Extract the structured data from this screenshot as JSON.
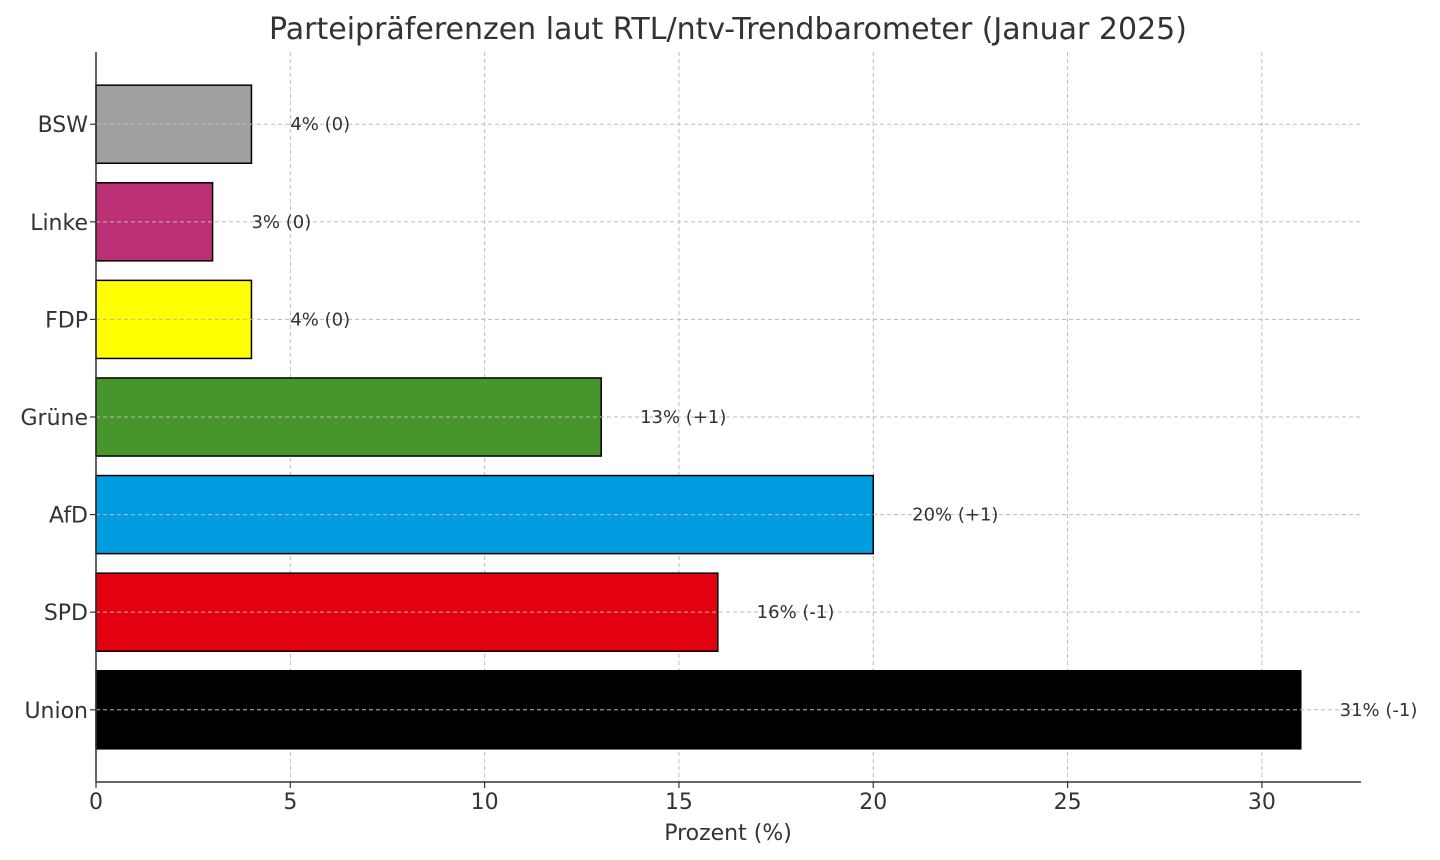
{
  "chart_data": {
    "type": "bar",
    "orientation": "horizontal",
    "title": "Parteipräferenzen laut RTL/ntv-Trendbarometer (Januar 2025)",
    "xlabel": "Prozent (%)",
    "ylabel": "",
    "xlim": [
      0,
      32.55
    ],
    "xticks": [
      "0",
      "5",
      "10",
      "15",
      "20",
      "25",
      "30"
    ],
    "grid": true,
    "categories": [
      "Union",
      "SPD",
      "AfD",
      "Grüne",
      "FDP",
      "Linke",
      "BSW"
    ],
    "values": [
      31,
      16,
      20,
      13,
      4,
      3,
      4
    ],
    "changes": [
      "-1",
      "-1",
      "+1",
      "+1",
      "0",
      "0",
      "0"
    ],
    "data_labels": [
      "31% (-1)",
      "16% (-1)",
      "20% (+1)",
      "13% (+1)",
      "4% (0)",
      "3% (0)",
      "4% (0)"
    ],
    "colors": [
      "#000000",
      "#e3000f",
      "#009ee0",
      "#46962b",
      "#ffff00",
      "#be3075",
      "#a0a0a0"
    ]
  }
}
